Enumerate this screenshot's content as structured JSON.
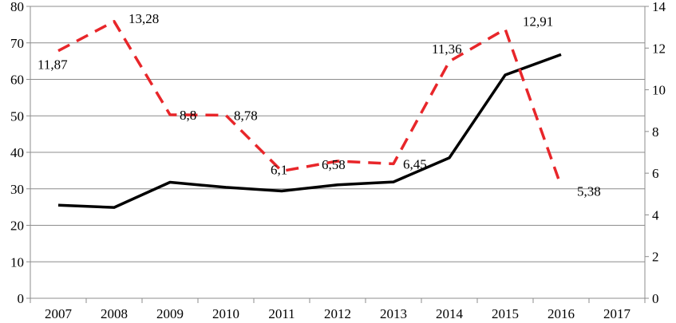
{
  "chart_data": {
    "type": "line",
    "categories": [
      "2007",
      "2008",
      "2009",
      "2010",
      "2011",
      "2012",
      "2013",
      "2014",
      "2015",
      "2016",
      "2017"
    ],
    "y_left": {
      "min": 0,
      "max": 80,
      "step": 10
    },
    "y_right": {
      "min": 0,
      "max": 14,
      "step": 2
    },
    "grid": true,
    "series": [
      {
        "axis": "left",
        "style": "solid",
        "color": "#000000",
        "values": [
          25.5,
          24.9,
          31.8,
          30.4,
          29.4,
          31.1,
          31.9,
          38.5,
          61.2,
          66.8,
          null
        ]
      },
      {
        "axis": "right",
        "style": "dashed",
        "color": "#e8262a",
        "values": [
          11.87,
          13.28,
          8.8,
          8.78,
          6.1,
          6.58,
          6.45,
          11.36,
          12.91,
          5.38,
          null
        ],
        "data_labels": [
          "11,87",
          "13,28",
          "8,8",
          "8,78",
          "6,1",
          "6,58",
          "6,45",
          "11,36",
          "12,91",
          "5,38",
          null
        ]
      }
    ]
  }
}
